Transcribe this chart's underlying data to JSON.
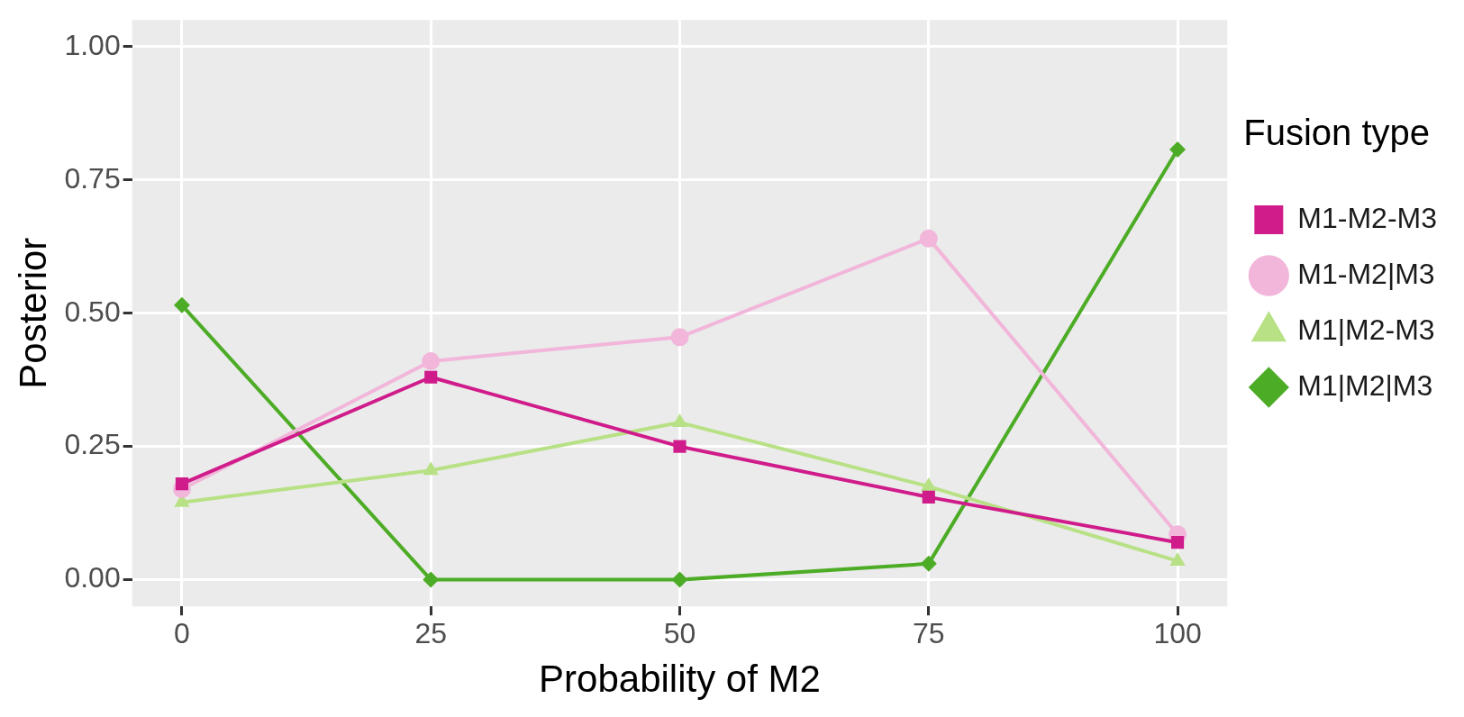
{
  "chart_data": {
    "type": "line",
    "xlabel": "Probability of M2",
    "ylabel": "Posterior",
    "legend_title": "Fusion type",
    "x": [
      0,
      25,
      50,
      75,
      100
    ],
    "series": [
      {
        "name": "M1-M2-M3",
        "color": "#d01c8b",
        "marker": "square",
        "values": [
          0.18,
          0.38,
          0.25,
          0.155,
          0.07
        ]
      },
      {
        "name": "M1-M2|M3",
        "color": "#f1b6da",
        "marker": "circle",
        "values": [
          0.17,
          0.41,
          0.455,
          0.64,
          0.085
        ]
      },
      {
        "name": "M1|M2-M3",
        "color": "#b8e186",
        "marker": "triangle",
        "values": [
          0.145,
          0.205,
          0.295,
          0.175,
          0.035
        ]
      },
      {
        "name": "M1|M2|M3",
        "color": "#4dac26",
        "marker": "diamond",
        "values": [
          0.515,
          0,
          0,
          0.03,
          0.807
        ]
      }
    ],
    "xlim": [
      -5,
      105
    ],
    "xticks": [
      0,
      25,
      50,
      75,
      100
    ],
    "ylim": [
      -0.05,
      1.05
    ],
    "yticks": [
      {
        "value": 0,
        "label": "0.00"
      },
      {
        "value": 0.25,
        "label": "0.25"
      },
      {
        "value": 0.5,
        "label": "0.50"
      },
      {
        "value": 0.75,
        "label": "0.75"
      },
      {
        "value": 1,
        "label": "1.00"
      }
    ],
    "grid": true,
    "legend": "right",
    "line_style": "solid"
  }
}
